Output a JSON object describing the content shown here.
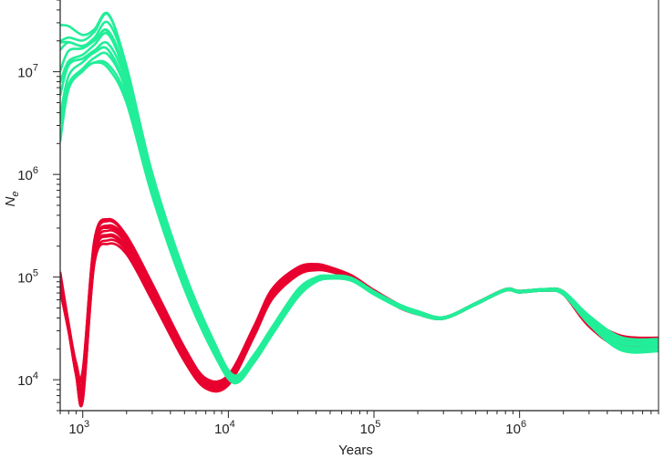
{
  "chart_data": {
    "type": "line",
    "xlabel": "Years",
    "ylabel": "N",
    "ylabel_sub": "e",
    "xscale": "log",
    "yscale": "log",
    "xlim": [
      700,
      9000000
    ],
    "ylim": [
      5000,
      50000000
    ],
    "grid": false,
    "legend": "none",
    "x_ticks": [
      {
        "value": 1000,
        "base": "10",
        "exp": "3"
      },
      {
        "value": 10000,
        "base": "10",
        "exp": "4"
      },
      {
        "value": 100000,
        "base": "10",
        "exp": "5"
      },
      {
        "value": 1000000,
        "base": "10",
        "exp": "6"
      }
    ],
    "y_ticks": [
      {
        "value": 10000,
        "base": "10",
        "exp": "4"
      },
      {
        "value": 100000,
        "base": "10",
        "exp": "5"
      },
      {
        "value": 1000000,
        "base": "10",
        "exp": "6"
      },
      {
        "value": 10000000,
        "base": "10",
        "exp": "7"
      }
    ],
    "groups": [
      {
        "color": "#e8002f",
        "count": 12,
        "x": [
          700,
          800,
          900,
          1000,
          1200,
          1500,
          2000,
          3000,
          5000,
          7000,
          10000,
          15000,
          20000,
          30000,
          40000,
          50000,
          70000,
          100000,
          150000,
          200000,
          300000,
          500000,
          800000,
          1000000,
          1500000,
          2000000,
          3000000,
          5000000,
          9000000
        ],
        "y": [
          80000,
          30000,
          12000,
          12000,
          150000,
          250000,
          200000,
          70000,
          17000,
          9000,
          10000,
          30000,
          70000,
          115000,
          125000,
          118000,
          100000,
          72000,
          52000,
          45000,
          40000,
          55000,
          75000,
          72000,
          75000,
          70000,
          38000,
          26000,
          25000
        ],
        "bottom_offsets": [
          -0.07,
          -0.03,
          -0.06,
          -0.34,
          -0.08,
          -0.1,
          -0.1,
          -0.1,
          -0.08,
          -0.06,
          -0.07,
          -0.07,
          -0.07,
          -0.05,
          -0.04,
          -0.03,
          -0.02,
          -0.02,
          -0.02,
          -0.02,
          -0.01,
          -0.01,
          -0.01,
          -0.01,
          -0.01,
          -0.02,
          -0.07,
          -0.12,
          -0.05
        ],
        "top_offsets": [
          0.18,
          0.08,
          0.1,
          0.05,
          0.22,
          0.22,
          0.14,
          0.12,
          0.1,
          0.07,
          0.06,
          0.06,
          0.06,
          0.05,
          0.04,
          0.03,
          0.02,
          0.02,
          0.02,
          0.02,
          0.01,
          0.01,
          0.01,
          0.01,
          0.01,
          0.02,
          0.04,
          0.04,
          0.02
        ]
      },
      {
        "color": "#22ee99",
        "count": 12,
        "x": [
          700,
          800,
          1000,
          1200,
          1500,
          2000,
          3000,
          5000,
          8000,
          11000,
          15000,
          20000,
          30000,
          40000,
          50000,
          70000,
          100000,
          150000,
          200000,
          300000,
          500000,
          800000,
          1000000,
          1500000,
          2000000,
          3000000,
          5000000,
          9000000
        ],
        "y": [
          30000000,
          20000000,
          15000000,
          15000000,
          12000000,
          6000000,
          800000,
          90000,
          20000,
          10000,
          16000,
          30000,
          70000,
          95000,
          100000,
          95000,
          70000,
          52000,
          45000,
          40000,
          55000,
          75000,
          72000,
          75000,
          70000,
          38000,
          22000,
          21000
        ],
        "bottom_offsets": [
          -1.35,
          -0.6,
          -0.25,
          -0.15,
          -0.12,
          -0.12,
          -0.14,
          -0.1,
          -0.08,
          -0.05,
          -0.05,
          -0.05,
          -0.05,
          -0.03,
          -0.02,
          -0.02,
          -0.02,
          -0.02,
          -0.02,
          -0.01,
          -0.01,
          -0.01,
          -0.01,
          -0.01,
          -0.02,
          -0.05,
          -0.07,
          -0.06
        ],
        "top_offsets": [
          0.18,
          0.22,
          0.22,
          0.28,
          0.58,
          0.35,
          0.16,
          0.12,
          0.08,
          0.05,
          0.05,
          0.05,
          0.05,
          0.03,
          0.02,
          0.02,
          0.02,
          0.02,
          0.02,
          0.01,
          0.01,
          0.01,
          0.01,
          0.01,
          0.02,
          0.06,
          0.1,
          0.1
        ]
      }
    ]
  }
}
